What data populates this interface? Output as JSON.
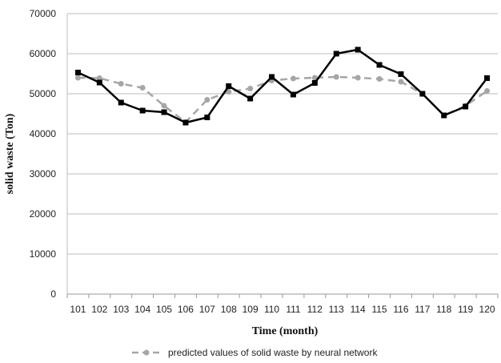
{
  "chart_data": {
    "type": "line",
    "title": "",
    "xlabel": "Time (month)",
    "ylabel": "solid waste (Ton)",
    "ylim": [
      0,
      70000
    ],
    "yticks": [
      0,
      10000,
      20000,
      30000,
      40000,
      50000,
      60000,
      70000
    ],
    "x": [
      "101",
      "102",
      "103",
      "104",
      "105",
      "106",
      "107",
      "108",
      "109",
      "110",
      "111",
      "112",
      "113",
      "114",
      "115",
      "116",
      "117",
      "118",
      "119",
      "120"
    ],
    "grid": true,
    "legend_position": "bottom",
    "series": [
      {
        "key": "actual",
        "name": "",
        "style": "solid",
        "marker": "square",
        "color": "#000000",
        "values": [
          55300,
          52800,
          47800,
          45800,
          45400,
          42800,
          44100,
          51900,
          48800,
          54200,
          49800,
          52700,
          60000,
          61000,
          57200,
          54900,
          50000,
          44600,
          46800,
          53900
        ]
      },
      {
        "key": "predicted",
        "name": "predicted values of solid waste by neural network",
        "style": "dashed",
        "marker": "circle",
        "color": "#a6a6a6",
        "values": [
          54000,
          53900,
          52500,
          51500,
          47000,
          42900,
          48500,
          50500,
          51300,
          53300,
          53800,
          54000,
          54200,
          54000,
          53700,
          53000,
          50000,
          44600,
          47000,
          50700
        ]
      }
    ]
  }
}
